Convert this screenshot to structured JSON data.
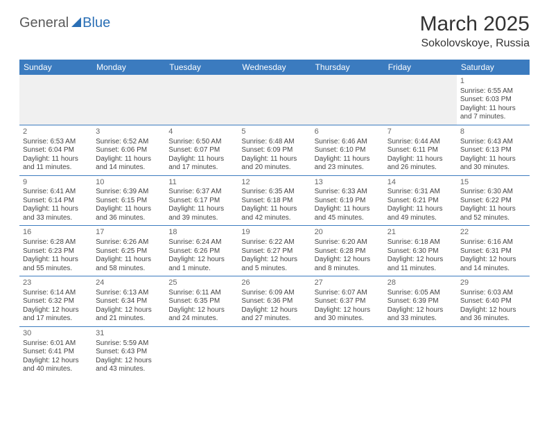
{
  "logo": {
    "part1": "General",
    "part2": "Blue"
  },
  "title": "March 2025",
  "location": "Sokolovskoye, Russia",
  "colors": {
    "header_bg": "#3b7bbf",
    "header_text": "#ffffff",
    "border": "#3b7bbf",
    "body_text": "#444444",
    "daynum": "#666666",
    "empty_bg": "#f0f0f0",
    "page_bg": "#ffffff"
  },
  "typography": {
    "title_fontsize": 30,
    "location_fontsize": 16,
    "header_fontsize": 12,
    "cell_fontsize": 10,
    "daynum_fontsize": 11
  },
  "weekdays": [
    "Sunday",
    "Monday",
    "Tuesday",
    "Wednesday",
    "Thursday",
    "Friday",
    "Saturday"
  ],
  "weeks": [
    [
      null,
      null,
      null,
      null,
      null,
      null,
      {
        "n": "1",
        "sr": "Sunrise: 6:55 AM",
        "ss": "Sunset: 6:03 PM",
        "d1": "Daylight: 11 hours",
        "d2": "and 7 minutes."
      }
    ],
    [
      {
        "n": "2",
        "sr": "Sunrise: 6:53 AM",
        "ss": "Sunset: 6:04 PM",
        "d1": "Daylight: 11 hours",
        "d2": "and 11 minutes."
      },
      {
        "n": "3",
        "sr": "Sunrise: 6:52 AM",
        "ss": "Sunset: 6:06 PM",
        "d1": "Daylight: 11 hours",
        "d2": "and 14 minutes."
      },
      {
        "n": "4",
        "sr": "Sunrise: 6:50 AM",
        "ss": "Sunset: 6:07 PM",
        "d1": "Daylight: 11 hours",
        "d2": "and 17 minutes."
      },
      {
        "n": "5",
        "sr": "Sunrise: 6:48 AM",
        "ss": "Sunset: 6:09 PM",
        "d1": "Daylight: 11 hours",
        "d2": "and 20 minutes."
      },
      {
        "n": "6",
        "sr": "Sunrise: 6:46 AM",
        "ss": "Sunset: 6:10 PM",
        "d1": "Daylight: 11 hours",
        "d2": "and 23 minutes."
      },
      {
        "n": "7",
        "sr": "Sunrise: 6:44 AM",
        "ss": "Sunset: 6:11 PM",
        "d1": "Daylight: 11 hours",
        "d2": "and 26 minutes."
      },
      {
        "n": "8",
        "sr": "Sunrise: 6:43 AM",
        "ss": "Sunset: 6:13 PM",
        "d1": "Daylight: 11 hours",
        "d2": "and 30 minutes."
      }
    ],
    [
      {
        "n": "9",
        "sr": "Sunrise: 6:41 AM",
        "ss": "Sunset: 6:14 PM",
        "d1": "Daylight: 11 hours",
        "d2": "and 33 minutes."
      },
      {
        "n": "10",
        "sr": "Sunrise: 6:39 AM",
        "ss": "Sunset: 6:15 PM",
        "d1": "Daylight: 11 hours",
        "d2": "and 36 minutes."
      },
      {
        "n": "11",
        "sr": "Sunrise: 6:37 AM",
        "ss": "Sunset: 6:17 PM",
        "d1": "Daylight: 11 hours",
        "d2": "and 39 minutes."
      },
      {
        "n": "12",
        "sr": "Sunrise: 6:35 AM",
        "ss": "Sunset: 6:18 PM",
        "d1": "Daylight: 11 hours",
        "d2": "and 42 minutes."
      },
      {
        "n": "13",
        "sr": "Sunrise: 6:33 AM",
        "ss": "Sunset: 6:19 PM",
        "d1": "Daylight: 11 hours",
        "d2": "and 45 minutes."
      },
      {
        "n": "14",
        "sr": "Sunrise: 6:31 AM",
        "ss": "Sunset: 6:21 PM",
        "d1": "Daylight: 11 hours",
        "d2": "and 49 minutes."
      },
      {
        "n": "15",
        "sr": "Sunrise: 6:30 AM",
        "ss": "Sunset: 6:22 PM",
        "d1": "Daylight: 11 hours",
        "d2": "and 52 minutes."
      }
    ],
    [
      {
        "n": "16",
        "sr": "Sunrise: 6:28 AM",
        "ss": "Sunset: 6:23 PM",
        "d1": "Daylight: 11 hours",
        "d2": "and 55 minutes."
      },
      {
        "n": "17",
        "sr": "Sunrise: 6:26 AM",
        "ss": "Sunset: 6:25 PM",
        "d1": "Daylight: 11 hours",
        "d2": "and 58 minutes."
      },
      {
        "n": "18",
        "sr": "Sunrise: 6:24 AM",
        "ss": "Sunset: 6:26 PM",
        "d1": "Daylight: 12 hours",
        "d2": "and 1 minute."
      },
      {
        "n": "19",
        "sr": "Sunrise: 6:22 AM",
        "ss": "Sunset: 6:27 PM",
        "d1": "Daylight: 12 hours",
        "d2": "and 5 minutes."
      },
      {
        "n": "20",
        "sr": "Sunrise: 6:20 AM",
        "ss": "Sunset: 6:28 PM",
        "d1": "Daylight: 12 hours",
        "d2": "and 8 minutes."
      },
      {
        "n": "21",
        "sr": "Sunrise: 6:18 AM",
        "ss": "Sunset: 6:30 PM",
        "d1": "Daylight: 12 hours",
        "d2": "and 11 minutes."
      },
      {
        "n": "22",
        "sr": "Sunrise: 6:16 AM",
        "ss": "Sunset: 6:31 PM",
        "d1": "Daylight: 12 hours",
        "d2": "and 14 minutes."
      }
    ],
    [
      {
        "n": "23",
        "sr": "Sunrise: 6:14 AM",
        "ss": "Sunset: 6:32 PM",
        "d1": "Daylight: 12 hours",
        "d2": "and 17 minutes."
      },
      {
        "n": "24",
        "sr": "Sunrise: 6:13 AM",
        "ss": "Sunset: 6:34 PM",
        "d1": "Daylight: 12 hours",
        "d2": "and 21 minutes."
      },
      {
        "n": "25",
        "sr": "Sunrise: 6:11 AM",
        "ss": "Sunset: 6:35 PM",
        "d1": "Daylight: 12 hours",
        "d2": "and 24 minutes."
      },
      {
        "n": "26",
        "sr": "Sunrise: 6:09 AM",
        "ss": "Sunset: 6:36 PM",
        "d1": "Daylight: 12 hours",
        "d2": "and 27 minutes."
      },
      {
        "n": "27",
        "sr": "Sunrise: 6:07 AM",
        "ss": "Sunset: 6:37 PM",
        "d1": "Daylight: 12 hours",
        "d2": "and 30 minutes."
      },
      {
        "n": "28",
        "sr": "Sunrise: 6:05 AM",
        "ss": "Sunset: 6:39 PM",
        "d1": "Daylight: 12 hours",
        "d2": "and 33 minutes."
      },
      {
        "n": "29",
        "sr": "Sunrise: 6:03 AM",
        "ss": "Sunset: 6:40 PM",
        "d1": "Daylight: 12 hours",
        "d2": "and 36 minutes."
      }
    ],
    [
      {
        "n": "30",
        "sr": "Sunrise: 6:01 AM",
        "ss": "Sunset: 6:41 PM",
        "d1": "Daylight: 12 hours",
        "d2": "and 40 minutes."
      },
      {
        "n": "31",
        "sr": "Sunrise: 5:59 AM",
        "ss": "Sunset: 6:43 PM",
        "d1": "Daylight: 12 hours",
        "d2": "and 43 minutes."
      },
      null,
      null,
      null,
      null,
      null
    ]
  ]
}
